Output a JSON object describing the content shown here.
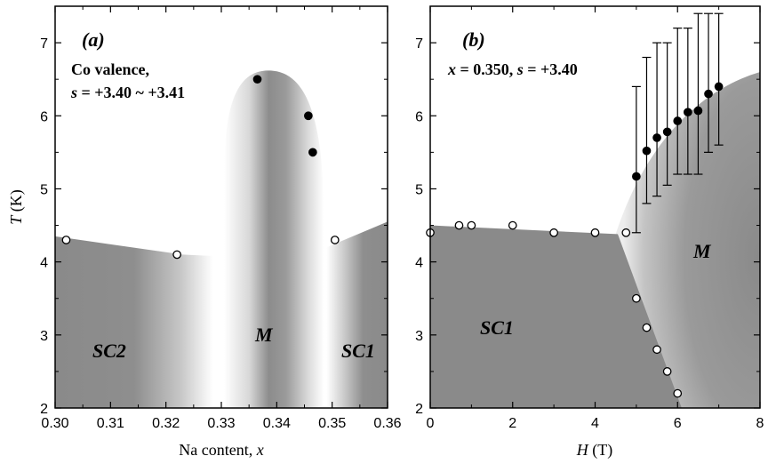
{
  "chart_data": [
    {
      "type": "scatter",
      "panel_label": "(a)",
      "annotation_lines": [
        "Co valence,",
        "s = +3.40 ~ +3.41"
      ],
      "xlabel": "Na content, x",
      "ylabel": "T (K)",
      "xlim": [
        0.3,
        0.36
      ],
      "ylim": [
        2,
        7.5
      ],
      "xticks": [
        "0.30",
        "0.31",
        "0.32",
        "0.33",
        "0.34",
        "0.35",
        "0.36"
      ],
      "yticks": [
        "2",
        "3",
        "4",
        "5",
        "6",
        "7"
      ],
      "regions": [
        "SC2",
        "M",
        "SC1"
      ],
      "series": [
        {
          "marker": "filled",
          "x": [
            0.3365,
            0.3457,
            0.3465
          ],
          "y": [
            6.5,
            6.0,
            5.5
          ]
        },
        {
          "marker": "open",
          "x": [
            0.302,
            0.322,
            0.3505
          ],
          "y": [
            4.3,
            4.1,
            4.3
          ]
        }
      ],
      "colors": {
        "region_dark": "#8a8a8a",
        "region_light": "#ffffff",
        "marker": "#000000"
      }
    },
    {
      "type": "scatter",
      "panel_label": "(b)",
      "annotation_lines": [
        "x = 0.350, s = +3.40"
      ],
      "xlabel": "H (T)",
      "ylabel": "",
      "xlim": [
        0,
        8
      ],
      "ylim": [
        2,
        7.5
      ],
      "xticks": [
        "0",
        "2",
        "4",
        "6",
        "8"
      ],
      "yticks": [
        "2",
        "3",
        "4",
        "5",
        "6",
        "7"
      ],
      "regions": [
        "SC1",
        "M"
      ],
      "series": [
        {
          "marker": "open",
          "x": [
            0,
            0.7,
            1.0,
            2.0,
            3.0,
            4.0,
            4.75,
            5.0,
            5.25,
            5.5,
            5.75,
            6.0
          ],
          "y": [
            4.4,
            4.5,
            4.5,
            4.5,
            4.4,
            4.4,
            4.4,
            3.5,
            3.1,
            2.8,
            2.5,
            2.2
          ]
        },
        {
          "marker": "filled",
          "x": [
            5.0,
            5.25,
            5.5,
            5.75,
            6.0,
            6.25,
            6.5,
            6.75,
            7.0
          ],
          "y": [
            5.17,
            5.52,
            5.7,
            5.78,
            5.93,
            6.05,
            6.07,
            6.3,
            6.4
          ],
          "err_low": [
            4.4,
            4.8,
            4.9,
            5.05,
            5.2,
            5.2,
            5.2,
            5.5,
            5.6
          ],
          "err_high": [
            6.4,
            6.8,
            7.0,
            7.0,
            7.2,
            7.2,
            7.4,
            7.4,
            7.4
          ]
        }
      ],
      "colors": {
        "region_dark": "#8a8a8a",
        "region_light": "#ffffff",
        "marker": "#000000"
      }
    }
  ]
}
